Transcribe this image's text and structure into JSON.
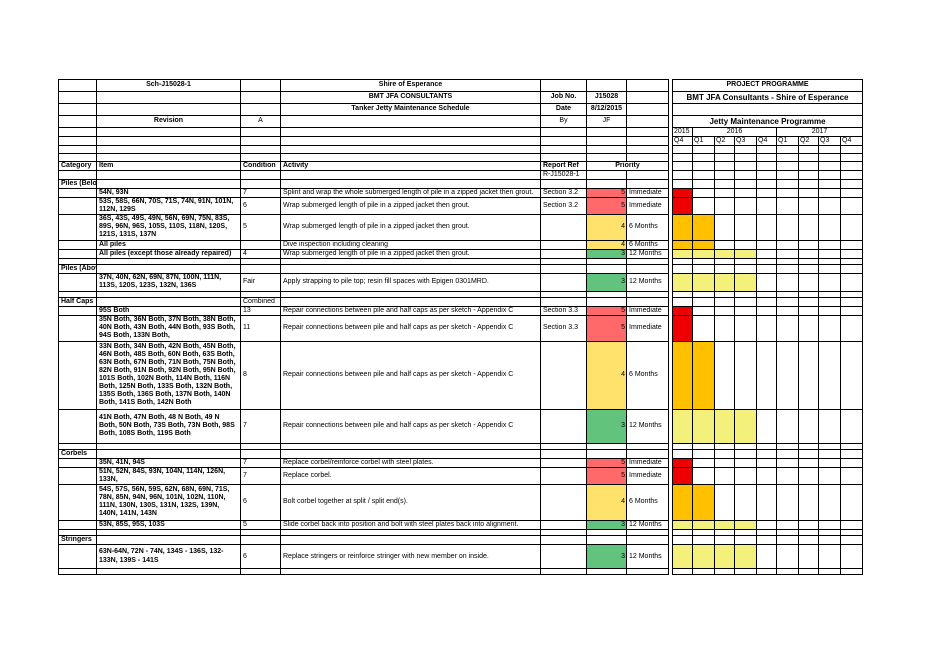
{
  "header": {
    "doc_id": "Sch-J15028-1",
    "client": "Shire of Esperance",
    "consultant": "BMT JFA CONSULTANTS",
    "schedule": "Tanker Jetty Maintenance Schedule",
    "job_no_label": "Job No.",
    "job_no": "J15028",
    "date_label": "Date",
    "date": "8/12/2015",
    "revision_label": "Revision",
    "revision": "A",
    "by_label": "By",
    "by": "JF",
    "programme_title": "PROJECT PROGRAMME",
    "programme_subtitle": "BMT JFA Consultants - Shire of Esperance",
    "programme_name": "Jetty Maintenance Programme"
  },
  "timeline": {
    "years": [
      "2015",
      "2016",
      "2017"
    ],
    "quarters": [
      "Q4",
      "Q1",
      "Q2",
      "Q3",
      "Q4",
      "Q1",
      "Q2",
      "Q3",
      "Q4"
    ]
  },
  "columns": {
    "category": "Category",
    "item": "Item",
    "condition": "Condition",
    "activity": "Activity",
    "report_ref": "Report Ref",
    "priority": "Priority",
    "report_ref_value": "R-J15028-1"
  },
  "colors": {
    "p5": "#ff6969",
    "p4": "#ffe26b",
    "p3": "#62c37d",
    "bar_red": "#ee0000",
    "bar_orange": "#ffc000",
    "bar_yellow": "#f4f07c"
  },
  "sections": [
    {
      "category": "Piles (Below Water)",
      "rows": [
        {
          "item": "54N, 93N",
          "condition": "7",
          "activity": "Splint and wrap the whole submerged length of pile in a zipped jacket then grout.",
          "ref": "Section 3.2",
          "priority": "5",
          "priority_text": "Immediate"
        },
        {
          "item": "53S, 58S, 66N, 70S, 71S, 74N, 91N, 101N, 112N, 129S",
          "condition": "6",
          "activity": "Wrap submerged length of pile in a zipped jacket then grout.",
          "ref": "Section 3.2",
          "priority": "5",
          "priority_text": "Immediate"
        },
        {
          "item": "36S, 43S, 49S, 49N, 56N, 69N, 75N, 83S, 89S, 96N, 96S, 105S, 110S, 118N, 120S, 121S, 131S, 137N",
          "condition": "5",
          "activity": "Wrap submerged length of pile in a zipped jacket then grout.",
          "ref": "",
          "priority": "4",
          "priority_text": "6 Months"
        },
        {
          "item": "All piles",
          "condition": "",
          "activity": "Dive inspection including cleaning",
          "ref": "",
          "priority": "4",
          "priority_text": "6 Months"
        },
        {
          "item": "All piles (except those already repaired)",
          "condition": "4",
          "activity": "Wrap submerged length of pile in a zipped jacket then grout.",
          "ref": "",
          "priority": "3",
          "priority_text": "12 Months"
        }
      ]
    },
    {
      "category": "Piles (Above Water)",
      "rows": [
        {
          "item": "37N, 40N, 62N, 69N, 87N, 100N, 111N, 113S, 120S, 123S, 132N, 136S",
          "condition": "Fair",
          "activity": "Apply strapping to pile top; resin fill spaces with Epigen 0301MRD.",
          "ref": "",
          "priority": "3",
          "priority_text": "12 Months"
        }
      ]
    },
    {
      "category": "Half Caps",
      "condition_note": "Combined",
      "rows": [
        {
          "item": "95S Both",
          "condition": "13",
          "activity": "Repair connections between pile and half caps as per sketch - Appendix C",
          "ref": "Section 3.3",
          "priority": "5",
          "priority_text": "Immediate"
        },
        {
          "item": "35N Both, 36N Both, 37N Both, 38N Both, 40N Both, 43N Both, 44N Both, 93S Both, 94S Both, 133N Both,",
          "condition": "11",
          "activity": "Repair connections between pile and half caps as per sketch - Appendix C",
          "ref": "Section 3.3",
          "priority": "5",
          "priority_text": "Immediate"
        },
        {
          "item": "33N Both, 34N Both, 42N Both, 45N Both, 46N Both, 48S Both, 60N Both, 63S Both, 63N Both, 67N Both, 71N Both, 75N Both, 82N Both, 91N Both, 92N Both, 95N Both, 101S Both, 102N Both, 114N Both, 116N Both, 125N Both, 133S Both, 132N Both, 135S Both, 136S Both, 137N Both, 140N Both, 141S Both, 142N Both",
          "condition": "8",
          "activity": "Repair connections between pile and half caps as per sketch - Appendix C",
          "ref": "",
          "priority": "4",
          "priority_text": "6 Months"
        },
        {
          "item": "41N Both, 47N Both, 48 N Both, 49 N Both, 50N Both, 73S Both, 73N Both, 98S Both, 108S Both, 119S Both",
          "condition": "7",
          "activity": "Repair connections between pile and half caps as per sketch - Appendix C",
          "ref": "",
          "priority": "3",
          "priority_text": "12 Months"
        }
      ]
    },
    {
      "category": "Corbels",
      "rows": [
        {
          "item": "35N, 41N, 94S",
          "condition": "7",
          "activity": "Replace corbel/reinforce corbel with steel plates.",
          "ref": "",
          "priority": "5",
          "priority_text": "Immediate"
        },
        {
          "item": "51N, 52N, 84S, 93N, 104N, 114N, 126N, 133N,",
          "condition": "7",
          "activity": "Replace corbel.",
          "ref": "",
          "priority": "5",
          "priority_text": "Immediate"
        },
        {
          "item": "54S, 57S, 56N, 59S, 62N, 68N, 69N, 71S, 78N, 85N, 94N, 96N, 101N, 102N, 110N, 111N, 130N, 130S, 131N, 132S, 139N, 140N, 141N, 143N",
          "condition": "6",
          "activity": "Bolt corbel together at split / split end(s).",
          "ref": "",
          "priority": "4",
          "priority_text": "6 Months"
        },
        {
          "item": "53N, 85S, 95S, 103S",
          "condition": "5",
          "activity": "Slide corbel back into position and bolt with steel plates back into alignment.",
          "ref": "",
          "priority": "3",
          "priority_text": "12 Months"
        }
      ]
    },
    {
      "category": "Stringers",
      "rows": [
        {
          "item": "63N-64N, 72N - 74N, 134S - 136S, 132-133N, 139S - 141S",
          "condition": "6",
          "activity": "Replace stringers or reinforce stringer with new member on inside.",
          "ref": "",
          "priority": "3",
          "priority_text": "12 Months"
        }
      ]
    }
  ]
}
